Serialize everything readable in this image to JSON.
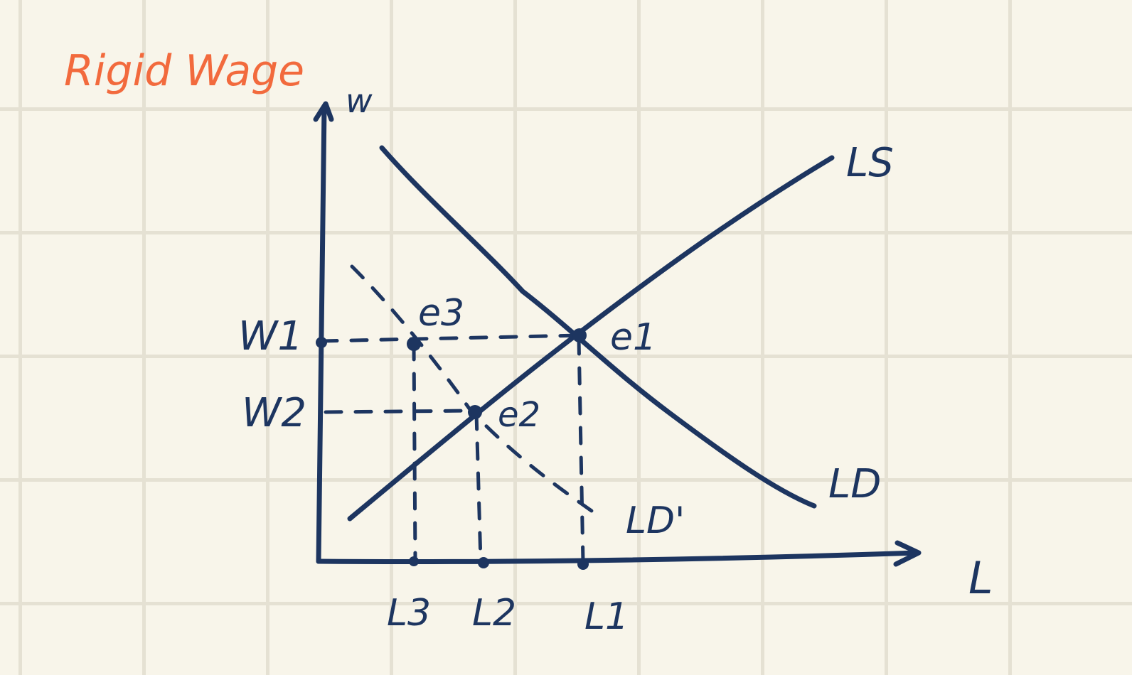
{
  "title": "Rigid Wage",
  "axes": {
    "y_label": "w",
    "x_label": "L"
  },
  "wage_levels": [
    "W1",
    "W2"
  ],
  "employment_levels": [
    "L3",
    "L2",
    "L1"
  ],
  "curves": {
    "supply": "LS",
    "demand": "LD",
    "demand_shifted": "LD'"
  },
  "equilibria": [
    "e1",
    "e2",
    "e3"
  ],
  "colors": {
    "title": "#f26a3d",
    "ink": "#1d3560",
    "paper": "#f8f5ea",
    "grid": "#e5e1d3"
  }
}
